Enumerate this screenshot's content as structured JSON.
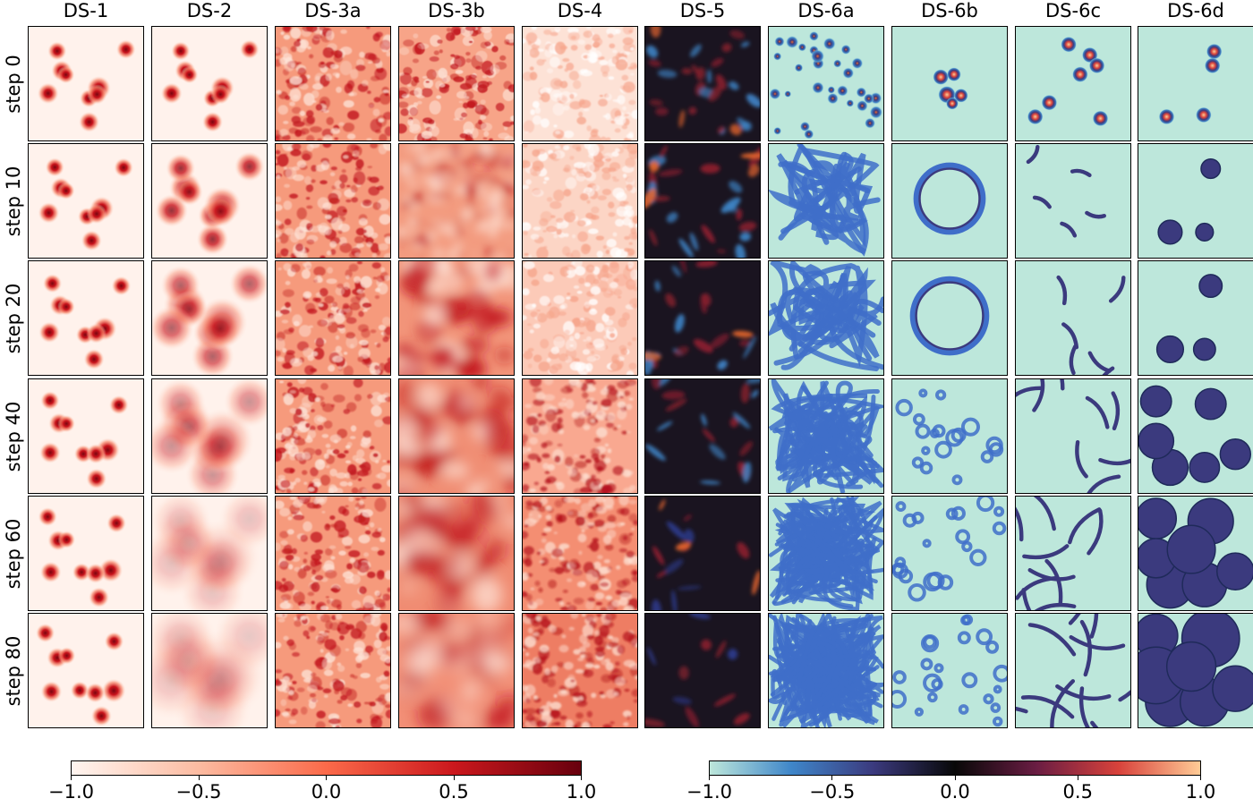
{
  "columns": [
    "DS-1",
    "DS-2",
    "DS-3a",
    "DS-3b",
    "DS-4",
    "DS-5",
    "DS-6a",
    "DS-6b",
    "DS-6c",
    "DS-6d"
  ],
  "rows": [
    "step 0",
    "step 10",
    "step 20",
    "step 40",
    "step 60",
    "step 80"
  ],
  "colorbars": [
    {
      "colormap": "reds",
      "stops": [
        "#fff5f0",
        "#fcbba1",
        "#fb6a4a",
        "#cb181d",
        "#67000d"
      ],
      "ticks": [
        "−1.0",
        "−0.5",
        "0.0",
        "0.5",
        "1.0"
      ]
    },
    {
      "colormap": "icefire",
      "stops": [
        "#bde7db",
        "#3f86c9",
        "#3b3a7e",
        "#080808",
        "#6a1d43",
        "#d8423b",
        "#ffcb96"
      ],
      "ticks": [
        "−1.0",
        "−0.5",
        "0.0",
        "0.5",
        "1.0"
      ]
    }
  ]
}
